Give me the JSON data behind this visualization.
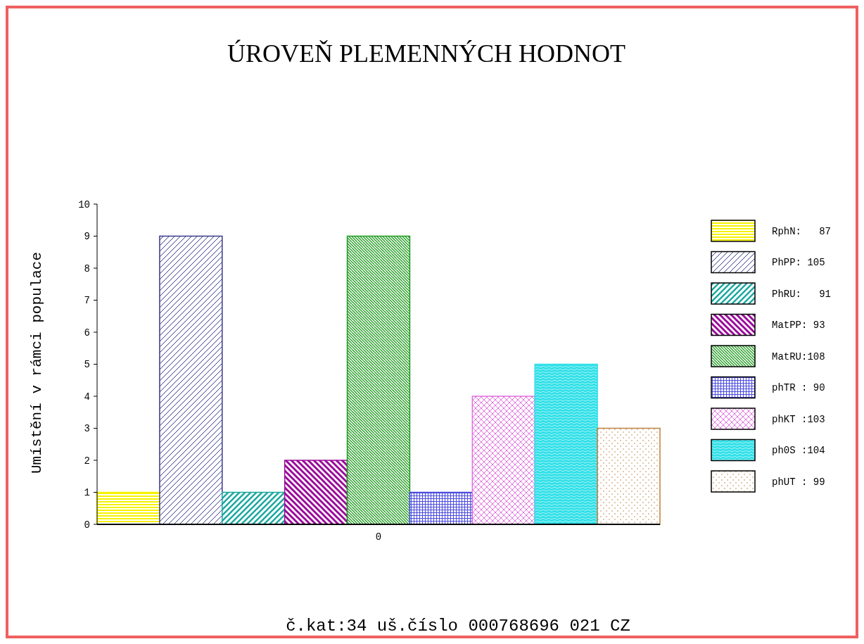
{
  "chart_data": {
    "type": "bar",
    "title": "ÚROVEŇ PLEMENNÝCH HODNOT",
    "ylabel": "Umístění v rámci populace",
    "categories": [
      "0"
    ],
    "series": [
      {
        "name": "RphN:   87",
        "color": "#f5f200",
        "values": [
          1
        ]
      },
      {
        "name": "PhPP: 105",
        "color": "#3a3a8c",
        "values": [
          9
        ]
      },
      {
        "name": "PhRU:   91",
        "color": "#1aa8a0",
        "values": [
          1
        ]
      },
      {
        "name": "MatPP: 93",
        "color": "#9a0a9a",
        "values": [
          2
        ]
      },
      {
        "name": "MatRU:108",
        "color": "#1e9a1e",
        "values": [
          9
        ]
      },
      {
        "name": "phTR : 90",
        "color": "#4a4ae0",
        "values": [
          1
        ]
      },
      {
        "name": "phKT :103",
        "color": "#e070e0",
        "values": [
          4
        ]
      },
      {
        "name": "ph0S :104",
        "color": "#30e0e8",
        "values": [
          5
        ]
      },
      {
        "name": "phUT : 99",
        "color": "#c08040",
        "values": [
          3
        ]
      }
    ],
    "ylim": [
      0,
      10
    ],
    "yticks": [
      0,
      1,
      2,
      3,
      4,
      5,
      6,
      7,
      8,
      9,
      10
    ],
    "grid": false,
    "legend": "right",
    "annotations": [
      "č.kat:34 uš.číslo 000768696 021 CZ"
    ]
  }
}
